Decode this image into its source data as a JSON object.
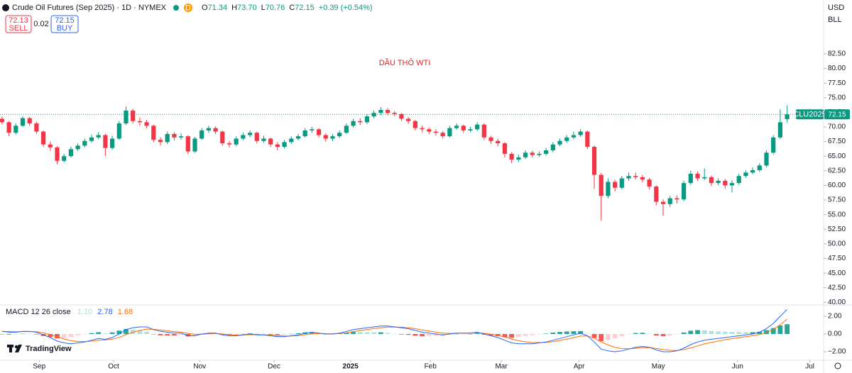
{
  "header": {
    "sell_price": "72.13",
    "sell_label": "SELL",
    "spread": "0.02",
    "buy_price": "72.15",
    "buy_label": "BUY",
    "interval_badge": "D",
    "ohlc": [
      {
        "label": "O",
        "value": "71.34"
      },
      {
        "label": "H",
        "value": "73.70"
      },
      {
        "label": "L",
        "value": "70.76"
      },
      {
        "label": "C",
        "value": "72.15"
      }
    ],
    "change": "+0.39 (+0.54%)",
    "currency": "USD",
    "unit": "BLL",
    "logo": "TradingView"
  },
  "chart_data": [
    {
      "type": "candlestick",
      "title": "Crude Oil Futures (Sep 2025) · 1D · NYMEX",
      "annotation": "DẦU THÔ WTI",
      "up_color": "#089981",
      "down_color": "#f23645",
      "x": [
        0,
        1,
        2,
        3,
        4,
        5,
        6,
        7,
        8,
        9,
        10,
        11,
        12,
        13,
        14,
        15,
        16,
        17,
        18,
        19,
        20,
        21,
        22,
        23,
        24,
        25,
        26,
        27,
        28,
        29,
        30,
        31,
        32,
        33,
        34,
        35,
        36,
        37,
        38,
        39,
        40,
        41,
        42,
        43,
        44,
        45,
        46,
        47,
        48,
        49,
        50,
        51,
        52,
        53,
        54,
        55,
        56,
        57,
        58,
        59,
        60,
        61,
        62,
        63,
        64,
        65,
        66,
        67,
        68,
        69,
        70,
        71,
        72,
        73,
        74,
        75,
        76,
        77,
        78,
        79,
        80,
        81,
        82,
        83,
        84,
        85,
        86,
        87,
        88,
        89,
        90,
        91,
        92,
        93,
        94,
        95,
        96,
        97,
        98,
        99,
        100,
        101,
        102,
        103,
        104,
        105,
        106,
        107,
        108,
        109,
        110,
        111,
        112,
        113,
        114
      ],
      "open": [
        71.4,
        70.8,
        69.0,
        70.2,
        71.5,
        70.6,
        69.2,
        67.0,
        66.5,
        64.2,
        65.0,
        66.2,
        66.8,
        67.6,
        68.2,
        68.6,
        66.4,
        68.0,
        70.6,
        72.8,
        71.0,
        70.8,
        70.2,
        67.8,
        67.4,
        68.8,
        68.2,
        68.4,
        65.8,
        68.0,
        69.4,
        69.8,
        69.2,
        67.2,
        67.0,
        68.0,
        68.6,
        69.0,
        67.6,
        68.0,
        67.0,
        66.6,
        67.4,
        68.0,
        68.4,
        69.4,
        69.6,
        68.6,
        68.0,
        68.4,
        69.0,
        70.2,
        71.0,
        70.8,
        71.8,
        72.4,
        72.9,
        72.4,
        72.2,
        71.4,
        71.0,
        69.8,
        69.6,
        69.2,
        69.0,
        68.4,
        69.8,
        70.2,
        69.4,
        69.6,
        70.4,
        68.2,
        67.6,
        67.2,
        65.4,
        64.4,
        64.8,
        65.6,
        65.2,
        65.4,
        66.0,
        67.0,
        67.6,
        68.2,
        68.6,
        69.2,
        66.6,
        61.8,
        58.2,
        60.6,
        59.6,
        61.2,
        61.6,
        61.4,
        61.0,
        59.8,
        57.2,
        56.8,
        57.8,
        57.6,
        60.4,
        62.0,
        61.2,
        61.4,
        60.4,
        60.8,
        60.0,
        60.4,
        61.6,
        62.2,
        62.6,
        63.4,
        65.6,
        68.2,
        71.34
      ],
      "high": [
        71.8,
        71.0,
        70.6,
        71.8,
        71.7,
        70.9,
        69.4,
        67.5,
        66.7,
        65.4,
        66.6,
        67.2,
        68.0,
        68.7,
        69.1,
        68.8,
        68.5,
        71.0,
        73.5,
        73.1,
        71.6,
        71.2,
        70.4,
        68.2,
        69.2,
        69.1,
        68.9,
        68.6,
        68.3,
        69.8,
        70.2,
        70.1,
        69.4,
        67.6,
        68.4,
        69.0,
        69.4,
        69.2,
        68.5,
        68.2,
        67.4,
        67.8,
        68.4,
        68.8,
        69.8,
        70.0,
        69.8,
        68.9,
        68.8,
        69.4,
        70.6,
        71.4,
        71.5,
        72.2,
        72.8,
        73.4,
        73.2,
        72.7,
        72.4,
        71.7,
        71.2,
        70.2,
        69.9,
        69.6,
        69.3,
        70.2,
        70.6,
        70.4,
        70.0,
        70.8,
        70.6,
        68.5,
        68.0,
        67.4,
        65.7,
        65.3,
        66.0,
        65.9,
        65.8,
        66.4,
        67.4,
        68.0,
        68.6,
        69.2,
        69.6,
        69.4,
        66.8,
        62.1,
        61.2,
        61.0,
        61.6,
        62.2,
        62.2,
        61.8,
        61.3,
        60.0,
        57.6,
        58.2,
        58.3,
        60.8,
        62.5,
        62.4,
        62.9,
        61.7,
        61.2,
        61.1,
        60.9,
        62.0,
        62.6,
        63.1,
        63.8,
        66.0,
        68.6,
        73.0,
        73.7
      ],
      "low": [
        70.4,
        68.4,
        68.7,
        70.0,
        70.2,
        68.8,
        66.6,
        65.9,
        63.6,
        63.9,
        64.8,
        65.9,
        66.5,
        67.3,
        67.9,
        65.0,
        66.1,
        67.8,
        70.3,
        70.6,
        70.2,
        69.8,
        67.4,
        66.8,
        67.1,
        67.7,
        67.8,
        65.4,
        65.6,
        67.8,
        69.0,
        68.8,
        66.8,
        66.5,
        66.7,
        67.7,
        68.2,
        67.2,
        67.3,
        66.6,
        66.0,
        66.3,
        67.1,
        67.7,
        68.2,
        69.0,
        68.2,
        67.5,
        67.6,
        68.1,
        68.8,
        69.9,
        70.3,
        70.5,
        71.5,
        72.0,
        72.0,
        71.8,
        71.0,
        70.5,
        69.4,
        69.1,
        68.8,
        68.5,
        68.0,
        68.2,
        69.5,
        69.0,
        69.1,
        69.3,
        67.8,
        67.1,
        66.7,
        64.8,
        63.8,
        64.0,
        64.5,
        64.8,
        64.9,
        65.1,
        65.7,
        66.7,
        67.3,
        67.9,
        68.3,
        66.2,
        59.4,
        54.0,
        57.8,
        59.0,
        59.3,
        60.8,
        61.0,
        60.5,
        59.3,
        56.6,
        54.8,
        56.3,
        56.9,
        57.3,
        60.1,
        60.8,
        60.9,
        59.9,
        60.0,
        59.4,
        58.8,
        60.1,
        61.3,
        61.9,
        62.3,
        63.1,
        65.3,
        67.9,
        70.76
      ],
      "close": [
        70.8,
        69.0,
        70.2,
        71.5,
        70.6,
        69.2,
        67.0,
        66.5,
        64.2,
        65.0,
        66.2,
        66.8,
        67.6,
        68.2,
        68.6,
        66.4,
        68.0,
        70.6,
        72.8,
        71.0,
        70.8,
        70.2,
        67.8,
        67.4,
        68.8,
        68.2,
        68.4,
        65.8,
        68.0,
        69.4,
        69.8,
        69.2,
        67.2,
        67.0,
        68.0,
        68.6,
        69.0,
        67.6,
        68.0,
        67.0,
        66.6,
        67.4,
        68.0,
        68.4,
        69.4,
        69.6,
        68.6,
        68.0,
        68.4,
        69.0,
        70.2,
        71.0,
        70.8,
        71.8,
        72.4,
        72.9,
        72.4,
        72.2,
        71.4,
        71.0,
        69.8,
        69.6,
        69.2,
        69.0,
        68.4,
        69.8,
        70.2,
        69.4,
        69.6,
        70.4,
        68.2,
        67.6,
        67.2,
        65.4,
        64.4,
        64.8,
        65.6,
        65.2,
        65.4,
        66.0,
        67.0,
        67.6,
        68.2,
        68.6,
        69.2,
        66.6,
        61.8,
        58.2,
        60.6,
        59.6,
        61.2,
        61.6,
        61.4,
        61.0,
        59.8,
        57.2,
        56.8,
        57.8,
        57.6,
        60.4,
        62.0,
        61.2,
        61.4,
        60.4,
        60.8,
        60.0,
        60.4,
        61.6,
        62.2,
        62.6,
        63.4,
        65.6,
        68.2,
        70.8,
        72.15
      ],
      "last_price": {
        "value": 72.15,
        "label": "72.15",
        "symbol": "CLU2025"
      },
      "xlim": [
        -0.3,
        119.3
      ],
      "xticks": [
        {
          "value": 5.4,
          "label": "Sep"
        },
        {
          "value": 16.2,
          "label": "Oct"
        },
        {
          "value": 28.7,
          "label": "Nov"
        },
        {
          "value": 39.5,
          "label": "Dec"
        },
        {
          "value": 50.6,
          "label": "2025"
        },
        {
          "value": 62.2,
          "label": "Feb"
        },
        {
          "value": 72.5,
          "label": "Mar"
        },
        {
          "value": 83.8,
          "label": "Apr"
        },
        {
          "value": 95.3,
          "label": "May"
        },
        {
          "value": 106.8,
          "label": "Jun"
        },
        {
          "value": 117.3,
          "label": "Jul"
        }
      ],
      "ylim": [
        39.8,
        91.1
      ],
      "yticks": [
        {
          "value": 40,
          "label": "40.00"
        },
        {
          "value": 42.5,
          "label": "42.50"
        },
        {
          "value": 45,
          "label": "45.00"
        },
        {
          "value": 47.5,
          "label": "47.50"
        },
        {
          "value": 50,
          "label": "50.00"
        },
        {
          "value": 52.5,
          "label": "52.50"
        },
        {
          "value": 55,
          "label": "55.00"
        },
        {
          "value": 57.5,
          "label": "57.50"
        },
        {
          "value": 60,
          "label": "60.00"
        },
        {
          "value": 62.5,
          "label": "62.50"
        },
        {
          "value": 65,
          "label": "65.00"
        },
        {
          "value": 67.5,
          "label": "67.50"
        },
        {
          "value": 70,
          "label": "70.00"
        },
        {
          "value": 72.5,
          "label": "72.50"
        },
        {
          "value": 75,
          "label": "75.00"
        },
        {
          "value": 77.5,
          "label": "77.50"
        },
        {
          "value": 80,
          "label": "80.00"
        },
        {
          "value": 82.5,
          "label": "82.50"
        }
      ]
    },
    {
      "type": "macd",
      "title": "MACD 12 26 close",
      "x": [
        0,
        1,
        2,
        3,
        4,
        5,
        6,
        7,
        8,
        9,
        10,
        11,
        12,
        13,
        14,
        15,
        16,
        17,
        18,
        19,
        20,
        21,
        22,
        23,
        24,
        25,
        26,
        27,
        28,
        29,
        30,
        31,
        32,
        33,
        34,
        35,
        36,
        37,
        38,
        39,
        40,
        41,
        42,
        43,
        44,
        45,
        46,
        47,
        48,
        49,
        50,
        51,
        52,
        53,
        54,
        55,
        56,
        57,
        58,
        59,
        60,
        61,
        62,
        63,
        64,
        65,
        66,
        67,
        68,
        69,
        70,
        71,
        72,
        73,
        74,
        75,
        76,
        77,
        78,
        79,
        80,
        81,
        82,
        83,
        84,
        85,
        86,
        87,
        88,
        89,
        90,
        91,
        92,
        93,
        94,
        95,
        96,
        97,
        98,
        99,
        100,
        101,
        102,
        103,
        104,
        105,
        106,
        107,
        108,
        109,
        110,
        111,
        112,
        113,
        114
      ],
      "histogram": [
        0.0,
        -0.07,
        -0.05,
        0.03,
        0.02,
        -0.05,
        -0.23,
        -0.34,
        -0.48,
        -0.44,
        -0.35,
        -0.16,
        -0.04,
        0.1,
        0.2,
        0.07,
        0.18,
        0.38,
        0.57,
        0.5,
        0.39,
        0.25,
        -0.03,
        -0.15,
        -0.16,
        -0.17,
        -0.11,
        -0.27,
        -0.17,
        0.02,
        0.08,
        0.05,
        -0.1,
        -0.13,
        -0.08,
        0.01,
        0.07,
        -0.02,
        -0.01,
        -0.07,
        -0.11,
        -0.07,
        0.02,
        0.08,
        0.18,
        0.18,
        0.05,
        -0.03,
        -0.02,
        0.05,
        0.16,
        0.23,
        0.21,
        0.2,
        0.19,
        0.19,
        0.12,
        0.01,
        -0.06,
        -0.1,
        -0.2,
        -0.26,
        -0.23,
        -0.21,
        -0.2,
        -0.07,
        0.02,
        0.01,
        0.01,
        0.07,
        -0.08,
        -0.18,
        -0.25,
        -0.36,
        -0.43,
        -0.34,
        -0.22,
        -0.14,
        -0.03,
        0.05,
        0.16,
        0.23,
        0.28,
        0.31,
        0.33,
        0.02,
        -0.44,
        -0.81,
        -0.66,
        -0.49,
        -0.25,
        -0.03,
        0.11,
        0.14,
        0.03,
        -0.18,
        -0.25,
        -0.16,
        -0.04,
        0.17,
        0.37,
        0.44,
        0.42,
        0.34,
        0.29,
        0.25,
        0.23,
        0.21,
        0.2,
        0.2,
        0.26,
        0.43,
        0.67,
        0.96,
        1.1
      ],
      "macd": [
        0.3,
        0.2,
        0.2,
        0.3,
        0.3,
        0.2,
        -0.1,
        -0.4,
        -0.8,
        -1.0,
        -1.1,
        -1.0,
        -0.9,
        -0.7,
        -0.5,
        -0.6,
        -0.4,
        0.0,
        0.5,
        0.7,
        0.8,
        0.8,
        0.5,
        0.3,
        0.2,
        0.1,
        0.1,
        -0.2,
        -0.2,
        0.0,
        0.1,
        0.1,
        -0.1,
        -0.2,
        -0.2,
        -0.1,
        0.0,
        -0.1,
        -0.1,
        -0.2,
        -0.3,
        -0.3,
        -0.2,
        -0.1,
        0.1,
        0.2,
        0.1,
        0.0,
        0.0,
        0.1,
        0.3,
        0.5,
        0.6,
        0.7,
        0.8,
        0.9,
        0.9,
        0.8,
        0.7,
        0.6,
        0.4,
        0.2,
        0.1,
        0.0,
        -0.1,
        0.0,
        0.1,
        0.1,
        0.1,
        0.2,
        0.0,
        -0.2,
        -0.4,
        -0.7,
        -1.0,
        -1.1,
        -1.1,
        -1.1,
        -1.0,
        -0.9,
        -0.7,
        -0.5,
        -0.3,
        -0.1,
        0.1,
        -0.2,
        -0.9,
        -1.7,
        -1.9,
        -2.0,
        -1.9,
        -1.7,
        -1.5,
        -1.4,
        -1.5,
        -1.8,
        -2.0,
        -2.0,
        -1.9,
        -1.6,
        -1.2,
        -0.9,
        -0.7,
        -0.6,
        -0.5,
        -0.4,
        -0.3,
        -0.2,
        -0.1,
        0.0,
        0.2,
        0.6,
        1.2,
        2.0,
        2.78
      ],
      "signal": [
        0.3,
        0.27,
        0.25,
        0.27,
        0.28,
        0.25,
        0.13,
        -0.06,
        -0.32,
        -0.56,
        -0.75,
        -0.84,
        -0.86,
        -0.8,
        -0.7,
        -0.67,
        -0.58,
        -0.38,
        -0.07,
        0.2,
        0.41,
        0.55,
        0.53,
        0.45,
        0.36,
        0.27,
        0.21,
        0.07,
        -0.03,
        -0.02,
        0.02,
        0.05,
        0.0,
        -0.07,
        -0.12,
        -0.11,
        -0.07,
        -0.08,
        -0.09,
        -0.13,
        -0.19,
        -0.23,
        -0.22,
        -0.18,
        -0.08,
        0.02,
        0.05,
        0.03,
        0.02,
        0.05,
        0.14,
        0.27,
        0.39,
        0.5,
        0.61,
        0.71,
        0.78,
        0.79,
        0.76,
        0.7,
        0.6,
        0.46,
        0.33,
        0.21,
        0.1,
        0.07,
        0.08,
        0.09,
        0.09,
        0.13,
        0.08,
        -0.02,
        -0.15,
        -0.34,
        -0.57,
        -0.76,
        -0.88,
        -0.96,
        -0.97,
        -0.95,
        -0.86,
        -0.73,
        -0.58,
        -0.41,
        -0.23,
        -0.22,
        -0.46,
        -0.89,
        -1.24,
        -1.51,
        -1.65,
        -1.67,
        -1.61,
        -1.54,
        -1.53,
        -1.62,
        -1.75,
        -1.84,
        -1.86,
        -1.77,
        -1.57,
        -1.34,
        -1.12,
        -0.94,
        -0.79,
        -0.65,
        -0.53,
        -0.41,
        -0.3,
        -0.2,
        -0.06,
        0.17,
        0.53,
        1.04,
        1.68
      ],
      "last_labels": {
        "histogram": "1.10",
        "macd": "2.78",
        "signal": "1.68"
      },
      "macd_color": "#2962ff",
      "signal_color": "#ff6d00",
      "histogram_colors": {
        "up_rising": "#26a69a",
        "up_falling": "#b2dfdb",
        "down_rising": "#ffcdd2",
        "down_falling": "#ff5252"
      },
      "ylim": [
        -2.96,
        3.12
      ],
      "yticks": [
        {
          "value": 2,
          "label": "2.00"
        },
        {
          "value": 0,
          "label": "0.00"
        },
        {
          "value": -2,
          "label": "−2.00"
        }
      ]
    }
  ]
}
